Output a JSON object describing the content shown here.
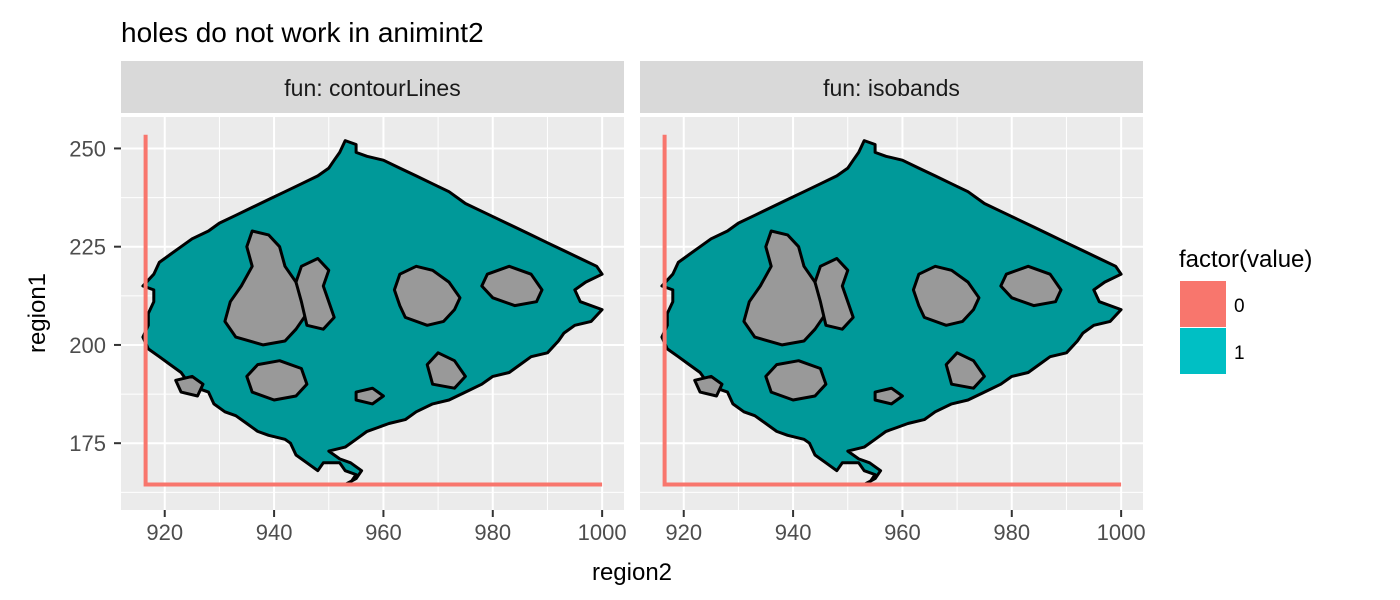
{
  "chart_data": {
    "type": "area",
    "title": "holes do not work in animint2",
    "xlabel": "region2",
    "ylabel": "region1",
    "xlim": [
      912,
      1004
    ],
    "ylim": [
      258,
      158
    ],
    "y_reversed": true,
    "x_ticks": [
      920,
      940,
      960,
      980,
      1000
    ],
    "y_ticks": [
      175,
      200,
      225,
      250
    ],
    "grid": true,
    "facet_strip_labels": [
      "fun: contourLines",
      "fun: isobands"
    ],
    "legend": {
      "title": "factor(value)",
      "placement": "right",
      "entries": [
        {
          "label": "0",
          "color": "#F8766D"
        },
        {
          "label": "1",
          "color": "#00BFC4"
        }
      ]
    },
    "series": [
      {
        "name": "0",
        "color": "#F8766D",
        "lines": [
          [
            [
              916.5,
              253.5
            ],
            [
              916.5,
              164.5
            ],
            [
              1000,
              164.5
            ]
          ],
          [
            [
              916.5,
              164.5
            ],
            [
              917.5,
              164.5
            ]
          ]
        ]
      },
      {
        "name": "1",
        "color": "#00BFC4",
        "region_fill": "#009999",
        "hole_fill": "#999999",
        "outer": [
          [
            953,
            164.5
          ],
          [
            954,
            165
          ],
          [
            955,
            167
          ],
          [
            953,
            168
          ],
          [
            952,
            170
          ],
          [
            949,
            170
          ],
          [
            948,
            168
          ],
          [
            946,
            170
          ],
          [
            944,
            172
          ],
          [
            943,
            175
          ],
          [
            942,
            176
          ],
          [
            939,
            177
          ],
          [
            937,
            178
          ],
          [
            935,
            180
          ],
          [
            933,
            182
          ],
          [
            931,
            183
          ],
          [
            929,
            185
          ],
          [
            928,
            188
          ],
          [
            926,
            189
          ],
          [
            924,
            191
          ],
          [
            923,
            193
          ],
          [
            921,
            195
          ],
          [
            919,
            197
          ],
          [
            917,
            199
          ],
          [
            916,
            202
          ],
          [
            917,
            205
          ],
          [
            917,
            208
          ],
          [
            918,
            211
          ],
          [
            918,
            214
          ],
          [
            916,
            215
          ],
          [
            918,
            218
          ],
          [
            919,
            221
          ],
          [
            921,
            223
          ],
          [
            923,
            225
          ],
          [
            925,
            227
          ],
          [
            928,
            229
          ],
          [
            930,
            231
          ],
          [
            933,
            233
          ],
          [
            936,
            235
          ],
          [
            939,
            237
          ],
          [
            942,
            239
          ],
          [
            945,
            241
          ],
          [
            948,
            243
          ],
          [
            950,
            245
          ],
          [
            951,
            247
          ],
          [
            952,
            249
          ],
          [
            953,
            252
          ],
          [
            955,
            251
          ],
          [
            955,
            249
          ],
          [
            957,
            248
          ],
          [
            960,
            247
          ],
          [
            963,
            245
          ],
          [
            966,
            243
          ],
          [
            969,
            241
          ],
          [
            972,
            239
          ],
          [
            975,
            236
          ],
          [
            978,
            234
          ],
          [
            981,
            232
          ],
          [
            984,
            230
          ],
          [
            987,
            228
          ],
          [
            990,
            226
          ],
          [
            993,
            224
          ],
          [
            996,
            222
          ],
          [
            999,
            220
          ],
          [
            1000,
            218
          ],
          [
            997,
            216
          ],
          [
            995,
            214
          ],
          [
            996,
            211
          ],
          [
            1000,
            209
          ],
          [
            998,
            206
          ],
          [
            995,
            205
          ],
          [
            993,
            203
          ],
          [
            992,
            201
          ],
          [
            990,
            198
          ],
          [
            987,
            197
          ],
          [
            985,
            195
          ],
          [
            983,
            193
          ],
          [
            980,
            192
          ],
          [
            978,
            190
          ],
          [
            975,
            188
          ],
          [
            972,
            186
          ],
          [
            969,
            185
          ],
          [
            966,
            183
          ],
          [
            964,
            181
          ],
          [
            961,
            180
          ],
          [
            959,
            179
          ],
          [
            957,
            178
          ],
          [
            955,
            176
          ],
          [
            953,
            174
          ],
          [
            950,
            173
          ],
          [
            952,
            171
          ],
          [
            954,
            170
          ],
          [
            956,
            168
          ],
          [
            955,
            166
          ],
          [
            953,
            164.5
          ]
        ],
        "holes": [
          [
            [
              940,
              186
            ],
            [
              944,
              187
            ],
            [
              946,
              190
            ],
            [
              945,
              194
            ],
            [
              941,
              196
            ],
            [
              937,
              195
            ],
            [
              935,
              192
            ],
            [
              936,
              188
            ]
          ],
          [
            [
              933,
              202
            ],
            [
              938,
              200
            ],
            [
              942,
              201
            ],
            [
              944,
              204
            ],
            [
              946,
              208
            ],
            [
              945,
              212
            ],
            [
              944,
              216
            ],
            [
              942,
              220
            ],
            [
              941,
              225
            ],
            [
              939,
              228
            ],
            [
              936,
              229
            ],
            [
              935,
              225
            ],
            [
              936,
              220
            ],
            [
              934,
              215
            ],
            [
              932,
              211
            ],
            [
              931,
              206
            ]
          ],
          [
            [
              946,
              205
            ],
            [
              949,
              204
            ],
            [
              951,
              207
            ],
            [
              950,
              211
            ],
            [
              949,
              215
            ],
            [
              950,
              219
            ],
            [
              948,
              222
            ],
            [
              945,
              220
            ],
            [
              944,
              216
            ],
            [
              945,
              211
            ]
          ],
          [
            [
              969,
              190
            ],
            [
              973,
              189
            ],
            [
              975,
              192
            ],
            [
              973,
              196
            ],
            [
              970,
              198
            ],
            [
              968,
              195
            ]
          ],
          [
            [
              964,
              207
            ],
            [
              968,
              205
            ],
            [
              971,
              206
            ],
            [
              973,
              209
            ],
            [
              974,
              212
            ],
            [
              972,
              216
            ],
            [
              969,
              219
            ],
            [
              966,
              220
            ],
            [
              963,
              218
            ],
            [
              962,
              214
            ],
            [
              963,
              210
            ]
          ],
          [
            [
              980,
              212
            ],
            [
              984,
              210
            ],
            [
              988,
              211
            ],
            [
              989,
              214
            ],
            [
              987,
              218
            ],
            [
              983,
              220
            ],
            [
              979,
              218
            ],
            [
              978,
              215
            ]
          ],
          [
            [
              923,
              188
            ],
            [
              926,
              187
            ],
            [
              927,
              190
            ],
            [
              925,
              192
            ],
            [
              922,
              191
            ]
          ],
          [
            [
              955,
              186
            ],
            [
              958,
              185
            ],
            [
              960,
              187
            ],
            [
              958,
              189
            ],
            [
              955,
              188
            ]
          ]
        ]
      }
    ]
  }
}
